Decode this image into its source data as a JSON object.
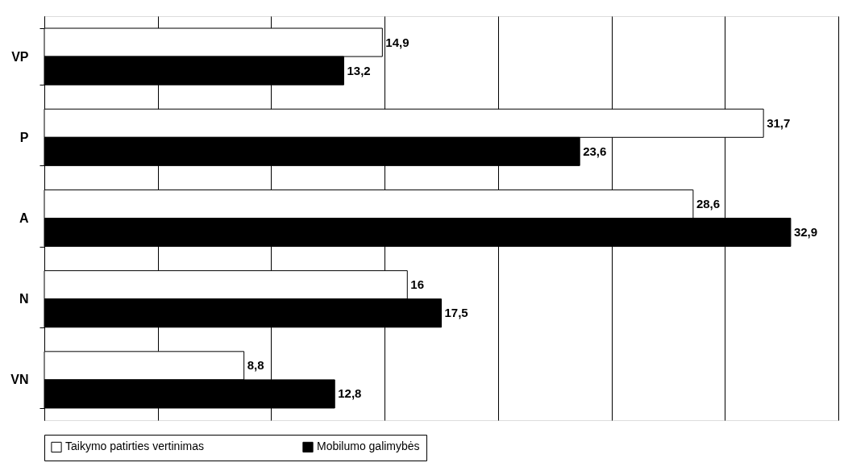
{
  "chart_data": {
    "type": "bar",
    "orientation": "horizontal",
    "categories": [
      "VP",
      "P",
      "A",
      "N",
      "VN"
    ],
    "series": [
      {
        "name": "Taikymo patirties vertinimas",
        "color": "#ffffff",
        "values": [
          14.9,
          31.7,
          28.6,
          16,
          8.8
        ],
        "value_labels": [
          "14,9",
          "31,7",
          "28,6",
          "16",
          "8,8"
        ]
      },
      {
        "name": "Mobilumo galimybės",
        "color": "#000000",
        "values": [
          13.2,
          23.6,
          32.9,
          17.5,
          12.8
        ],
        "value_labels": [
          "13,2",
          "23,6",
          "32,9",
          "17,5",
          "12,8"
        ]
      }
    ],
    "xlim": [
      0,
      35
    ],
    "xticks": [
      {
        "value": 0,
        "label": null
      },
      {
        "value": 5,
        "label": null
      },
      {
        "value": 10,
        "label": null
      },
      {
        "value": 15,
        "label": null
      },
      {
        "value": 20,
        "label": null
      },
      {
        "value": 25,
        "label": null
      },
      {
        "value": 30,
        "label": null
      },
      {
        "value": 35,
        "label": null
      }
    ],
    "tick_labels": "y",
    "grid": "x",
    "legend": "bottom"
  }
}
